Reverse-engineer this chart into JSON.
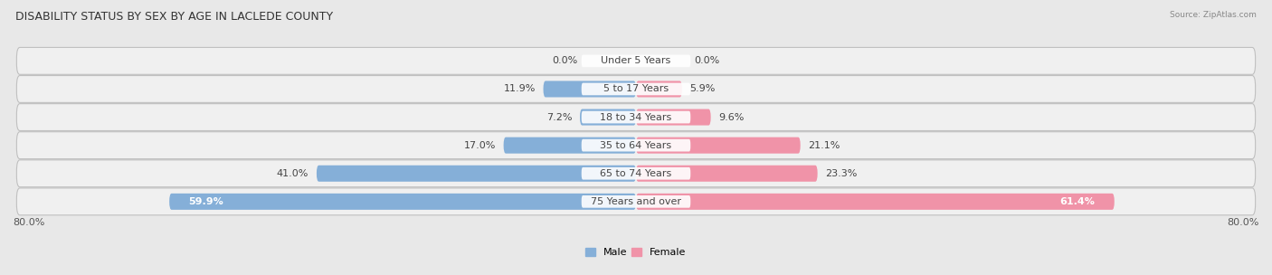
{
  "title": "DISABILITY STATUS BY SEX BY AGE IN LACLEDE COUNTY",
  "source": "Source: ZipAtlas.com",
  "categories": [
    "Under 5 Years",
    "5 to 17 Years",
    "18 to 34 Years",
    "35 to 64 Years",
    "65 to 74 Years",
    "75 Years and over"
  ],
  "male_values": [
    0.0,
    11.9,
    7.2,
    17.0,
    41.0,
    59.9
  ],
  "female_values": [
    0.0,
    5.9,
    9.6,
    21.1,
    23.3,
    61.4
  ],
  "male_color": "#85afd8",
  "female_color": "#f093a8",
  "male_label": "Male",
  "female_label": "Female",
  "xlim": 80.0,
  "axis_label_left": "80.0%",
  "axis_label_right": "80.0%",
  "bar_height": 0.58,
  "background_color": "#e8e8e8",
  "row_bg_color": "#f5f5f5",
  "row_border_color": "#cccccc",
  "title_fontsize": 9,
  "label_fontsize": 8,
  "value_fontsize": 8
}
